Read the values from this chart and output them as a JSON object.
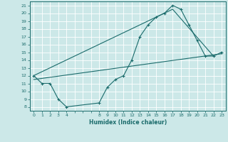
{
  "background_color": "#cce8e8",
  "grid_color": "#b0d8d8",
  "line_color": "#1a6b6b",
  "xlabel": "Humidex (Indice chaleur)",
  "xlim": [
    -0.5,
    23.5
  ],
  "ylim": [
    7.5,
    21.5
  ],
  "xticks": [
    0,
    1,
    2,
    3,
    4,
    8,
    9,
    10,
    11,
    12,
    13,
    14,
    15,
    16,
    17,
    18,
    19,
    20,
    21,
    22,
    23
  ],
  "yticks": [
    8,
    9,
    10,
    11,
    12,
    13,
    14,
    15,
    16,
    17,
    18,
    19,
    20,
    21
  ],
  "line1_x": [
    0,
    1,
    2,
    3,
    4,
    8,
    9,
    10,
    11,
    12,
    13,
    14,
    15,
    16,
    17,
    18,
    19,
    20,
    21,
    22,
    23
  ],
  "line1_y": [
    12,
    11,
    11,
    9,
    8,
    8.5,
    10.5,
    11.5,
    12,
    14,
    17,
    18.5,
    19.5,
    20,
    21,
    20.5,
    18.5,
    16.5,
    14.5,
    14.5,
    15
  ],
  "line2_x": [
    0,
    23
  ],
  "line2_y": [
    11.5,
    14.8
  ],
  "line3_x": [
    0,
    17,
    22
  ],
  "line3_y": [
    12,
    20.5,
    14.5
  ]
}
